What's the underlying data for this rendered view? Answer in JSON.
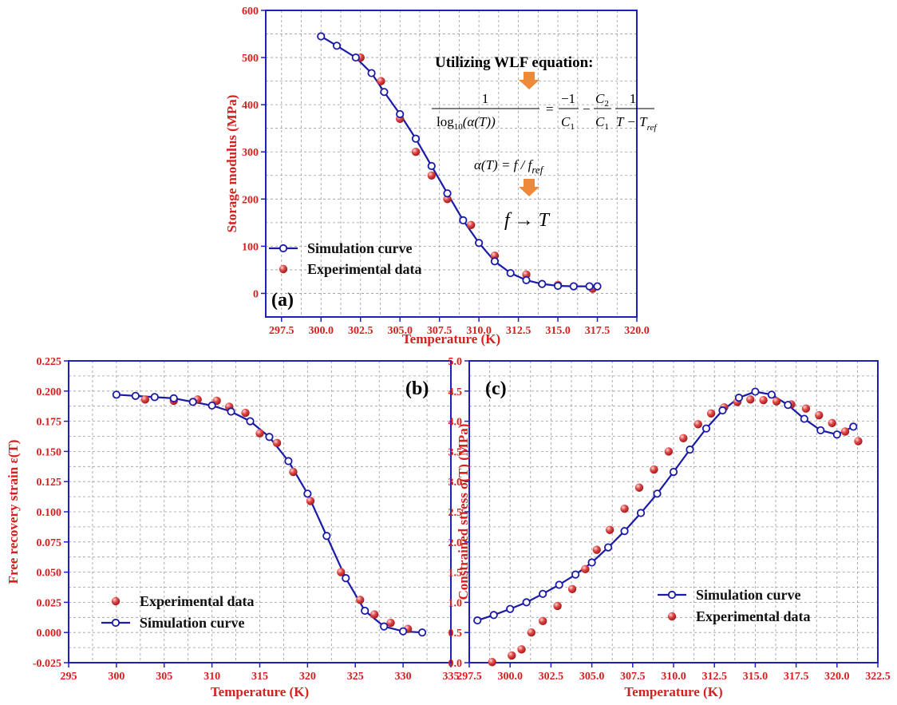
{
  "chart_data": [
    {
      "id": "a",
      "type": "scatter",
      "panel_label": "(a)",
      "xlabel": "Temperature (K)",
      "ylabel": "Storage modulus (MPa)",
      "xlim": [
        296.5,
        320
      ],
      "ylim": [
        -50,
        600
      ],
      "xticks": [
        "297.5",
        "300.0",
        "302.5",
        "305.0",
        "307.5",
        "310.0",
        "312.5",
        "315.0",
        "317.5",
        "320.0"
      ],
      "yticks": [
        "0",
        "100",
        "200",
        "300",
        "400",
        "500",
        "600"
      ],
      "grid": true,
      "legend_position": "bottom-left",
      "legend_order": [
        "Simulation curve",
        "Experimental data"
      ],
      "annotation": {
        "heading": "Utilizing WLF equation:",
        "eq1": {
          "num": "1",
          "den": "log",
          "den_sub": "10",
          "den_rest": "(α(T))",
          "eq": "=",
          "t1_num": "−1",
          "t1_den": "C",
          "t1_den_sub": "1",
          "minus": "−",
          "t2_num": "C",
          "t2_num_sub": "2",
          "t2_den": "C",
          "t2_den_sub": "1",
          "t3_num": "1",
          "t3_den": "T − T",
          "t3_den_sub": "ref"
        },
        "eq2": {
          "main": "α(T) = f / f",
          "sub": "ref"
        },
        "eq3": "f → T",
        "arrow_color": "#ed8a3a"
      },
      "series": [
        {
          "name": "Simulation curve",
          "style": "line-open-circle",
          "x": [
            300.0,
            301.0,
            302.2,
            303.2,
            304.0,
            305.0,
            306.0,
            307.0,
            308.0,
            309.0,
            310.0,
            311.0,
            312.0,
            313.0,
            314.0,
            315.0,
            316.0,
            317.0,
            317.5
          ],
          "y": [
            545,
            525,
            500,
            467,
            427,
            380,
            328,
            270,
            212,
            155,
            107,
            68,
            43,
            28,
            20,
            16,
            15,
            15,
            15
          ]
        },
        {
          "name": "Experimental data",
          "style": "ball",
          "x": [
            302.5,
            303.8,
            305.0,
            306.0,
            307.0,
            308.0,
            309.5,
            311.0,
            313.0,
            315.0,
            317.2
          ],
          "y": [
            500,
            450,
            370,
            300,
            250,
            200,
            145,
            80,
            40,
            18,
            10
          ]
        }
      ]
    },
    {
      "id": "b",
      "type": "scatter",
      "panel_label": "(b)",
      "xlabel": "Temperature (K)",
      "ylabel": "Free recovery strain ε(T)",
      "xlim": [
        295,
        335
      ],
      "ylim": [
        -0.025,
        0.225
      ],
      "xticks": [
        "295",
        "300",
        "305",
        "310",
        "315",
        "320",
        "325",
        "330",
        "335"
      ],
      "yticks": [
        "-0.025",
        "0.000",
        "0.025",
        "0.050",
        "0.075",
        "0.100",
        "0.125",
        "0.150",
        "0.175",
        "0.200",
        "0.225"
      ],
      "grid": true,
      "legend_position": "bottom-left",
      "legend_order": [
        "Experimental data",
        "Simulation curve"
      ],
      "series": [
        {
          "name": "Simulation curve",
          "style": "line-open-circle",
          "x": [
            300,
            302,
            304,
            306,
            308,
            310,
            312,
            314,
            316,
            318,
            320,
            322,
            324,
            326,
            328,
            330,
            332
          ],
          "y": [
            0.197,
            0.196,
            0.195,
            0.194,
            0.191,
            0.188,
            0.183,
            0.175,
            0.162,
            0.142,
            0.115,
            0.08,
            0.045,
            0.018,
            0.005,
            0.001,
            0.0
          ]
        },
        {
          "name": "Experimental data",
          "style": "ball",
          "x": [
            303,
            306,
            308.5,
            310.5,
            311.8,
            313.5,
            315,
            316.8,
            318.5,
            320.3,
            323.5,
            325.5,
            327,
            328.7,
            330.5
          ],
          "y": [
            0.193,
            0.192,
            0.193,
            0.192,
            0.187,
            0.182,
            0.165,
            0.157,
            0.133,
            0.109,
            0.05,
            0.027,
            0.015,
            0.008,
            0.003
          ]
        }
      ]
    },
    {
      "id": "c",
      "type": "scatter",
      "panel_label": "(c)",
      "xlabel": "Temperature (K)",
      "ylabel": "Constrained stress σ(T) (MPa)",
      "xlim": [
        297.5,
        322.5
      ],
      "ylim": [
        0,
        5
      ],
      "xticks": [
        "297.5",
        "300.0",
        "302.5",
        "305.0",
        "307.5",
        "310.0",
        "312.5",
        "315.0",
        "317.5",
        "320.0",
        "322.5"
      ],
      "yticks": [
        "0.0",
        "0.5",
        "1.0",
        "1.5",
        "2.0",
        "2.5",
        "3.0",
        "3.5",
        "4.0",
        "4.5",
        "5.0"
      ],
      "grid": true,
      "legend_position": "bottom-right",
      "legend_order": [
        "Simulation curve",
        "Experimental data"
      ],
      "series": [
        {
          "name": "Simulation curve",
          "style": "line-open-circle",
          "x": [
            298.0,
            299.0,
            300.0,
            301.0,
            302.0,
            303.0,
            304.0,
            305.0,
            306.0,
            307.0,
            308.0,
            309.0,
            310.0,
            311.0,
            312.0,
            313.0,
            314.0,
            315.0,
            316.0,
            317.0,
            318.0,
            319.0,
            320.0,
            321.0
          ],
          "y": [
            0.7,
            0.79,
            0.89,
            1.0,
            1.14,
            1.29,
            1.46,
            1.66,
            1.91,
            2.18,
            2.48,
            2.8,
            3.16,
            3.53,
            3.88,
            4.18,
            4.39,
            4.49,
            4.44,
            4.27,
            4.04,
            3.85,
            3.78,
            3.91
          ]
        },
        {
          "name": "Experimental data",
          "style": "ball",
          "x": [
            298.9,
            300.1,
            300.7,
            301.3,
            302.0,
            302.9,
            303.8,
            304.6,
            305.3,
            306.1,
            307.0,
            307.9,
            308.8,
            309.7,
            310.6,
            311.5,
            312.3,
            313.1,
            313.9,
            314.7,
            315.5,
            316.3,
            317.2,
            318.1,
            318.9,
            319.7,
            320.5,
            321.3
          ],
          "y": [
            0.01,
            0.12,
            0.22,
            0.5,
            0.69,
            0.94,
            1.22,
            1.55,
            1.87,
            2.2,
            2.55,
            2.9,
            3.2,
            3.5,
            3.72,
            3.95,
            4.13,
            4.23,
            4.32,
            4.36,
            4.35,
            4.33,
            4.28,
            4.21,
            4.1,
            3.97,
            3.83,
            3.67
          ]
        }
      ]
    }
  ]
}
